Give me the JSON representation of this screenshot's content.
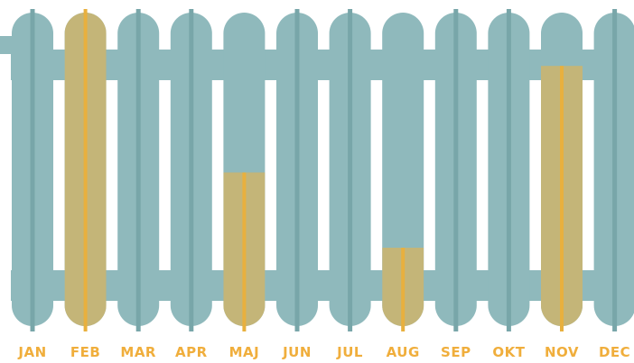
{
  "chart_data": {
    "type": "bar",
    "categories": [
      "JAN",
      "FEB",
      "MAR",
      "APR",
      "MAJ",
      "JUN",
      "JUL",
      "AUG",
      "SEP",
      "OKT",
      "NOV",
      "DEC"
    ],
    "values": [
      0,
      100,
      0,
      0,
      49,
      0,
      0,
      25,
      0,
      0,
      83,
      0
    ],
    "ylim": [
      0,
      100
    ],
    "grid": false,
    "colors": {
      "radiator": "#8fb9bc",
      "radiator_dark": "#78a6a9",
      "fill": "#c4b578",
      "fill_stripe": "#e8b03e",
      "label": "#f0ae3c"
    }
  }
}
